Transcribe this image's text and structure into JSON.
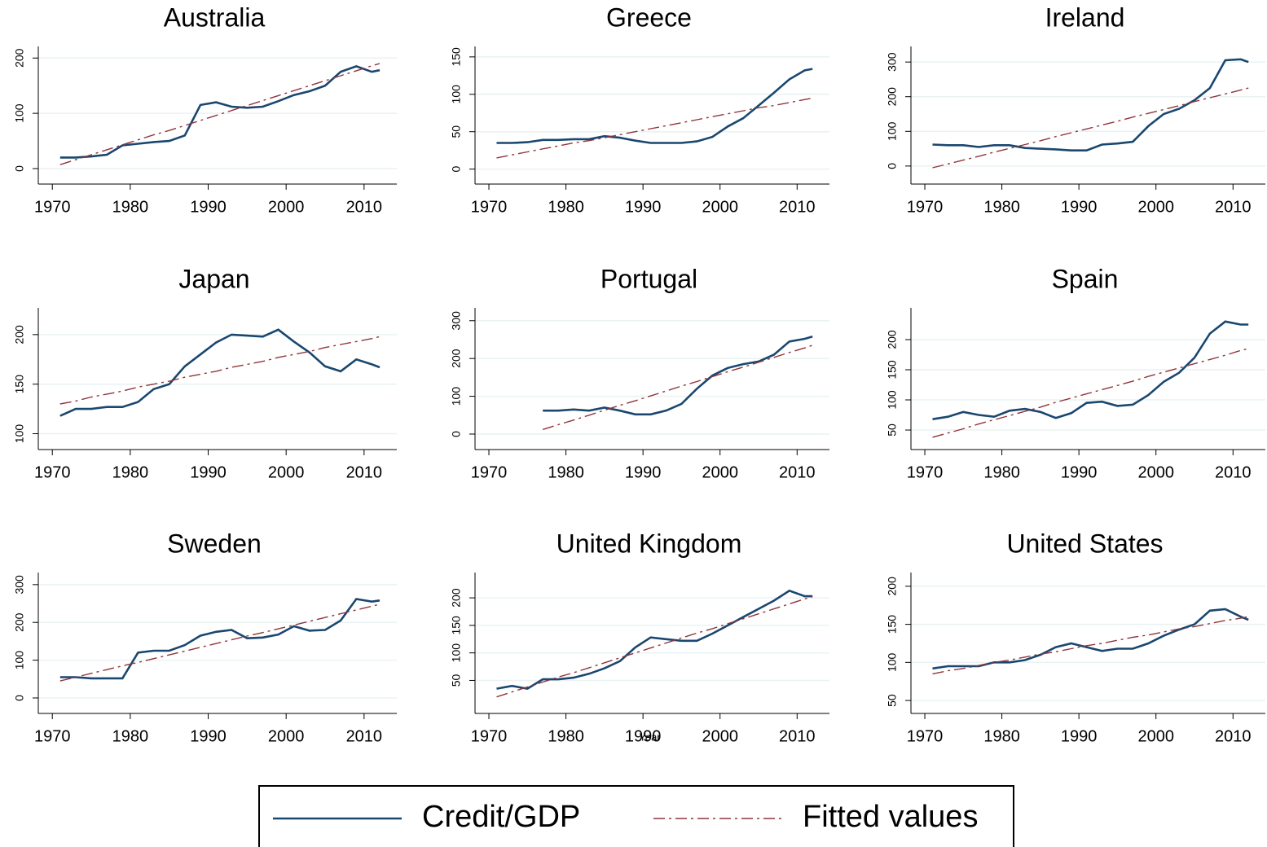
{
  "chart_data": [
    {
      "type": "line",
      "title": "Australia",
      "x": [
        1971,
        1973,
        1975,
        1977,
        1979,
        1981,
        1983,
        1985,
        1987,
        1989,
        1991,
        1993,
        1995,
        1997,
        1999,
        2001,
        2003,
        2005,
        2007,
        2009,
        2011,
        2012
      ],
      "series": [
        {
          "name": "Credit/GDP",
          "color": "#1a476f",
          "linestyle": "solid",
          "values": [
            20,
            20,
            22,
            25,
            42,
            45,
            48,
            50,
            60,
            115,
            120,
            112,
            110,
            112,
            122,
            133,
            140,
            150,
            175,
            185,
            175,
            178
          ]
        },
        {
          "name": "Fitted values",
          "color": "#90353b",
          "linestyle": "dashdot",
          "values": [
            7,
            16,
            25,
            34,
            43,
            52,
            61,
            69,
            78,
            87,
            96,
            105,
            114,
            123,
            132,
            141,
            150,
            159,
            168,
            177,
            186,
            190
          ]
        }
      ],
      "xlim": [
        1968.2,
        2014.2
      ],
      "xticks": [
        1970,
        1980,
        1990,
        2000,
        2010
      ],
      "ylim": [
        -28,
        221
      ],
      "yticks": [
        0,
        100,
        200
      ],
      "grid": true
    },
    {
      "type": "line",
      "title": "Greece",
      "x": [
        1971,
        1973,
        1975,
        1977,
        1979,
        1981,
        1983,
        1985,
        1987,
        1989,
        1991,
        1993,
        1995,
        1997,
        1999,
        2001,
        2003,
        2005,
        2007,
        2009,
        2011,
        2012
      ],
      "series": [
        {
          "name": "Credit/GDP",
          "color": "#1a476f",
          "linestyle": "solid",
          "values": [
            35,
            35,
            36,
            39,
            39,
            40,
            40,
            44,
            42,
            38,
            35,
            35,
            35,
            37,
            43,
            57,
            68,
            85,
            102,
            120,
            132,
            134
          ]
        },
        {
          "name": "Fitted values",
          "color": "#90353b",
          "linestyle": "dashdot",
          "values": [
            15,
            19,
            23,
            27,
            31,
            35,
            38,
            42,
            46,
            50,
            54,
            58,
            62,
            66,
            70,
            74,
            78,
            82,
            85,
            89,
            93,
            95
          ]
        }
      ],
      "xlim": [
        1968.2,
        2014.2
      ],
      "xticks": [
        1970,
        1980,
        1990,
        2000,
        2010
      ],
      "ylim": [
        -20,
        164
      ],
      "yticks": [
        0,
        50,
        100,
        150
      ],
      "grid": true
    },
    {
      "type": "line",
      "title": "Ireland",
      "x": [
        1971,
        1973,
        1975,
        1977,
        1979,
        1981,
        1983,
        1985,
        1987,
        1989,
        1991,
        1993,
        1995,
        1997,
        1999,
        2001,
        2003,
        2005,
        2007,
        2009,
        2011,
        2012
      ],
      "series": [
        {
          "name": "Credit/GDP",
          "color": "#1a476f",
          "linestyle": "solid",
          "values": [
            62,
            60,
            60,
            55,
            60,
            60,
            52,
            50,
            48,
            45,
            45,
            62,
            65,
            70,
            115,
            150,
            165,
            190,
            225,
            305,
            308,
            300
          ]
        },
        {
          "name": "Fitted values",
          "color": "#90353b",
          "linestyle": "dashdot",
          "values": [
            -5,
            6,
            17,
            28,
            40,
            51,
            62,
            73,
            85,
            96,
            107,
            118,
            129,
            141,
            152,
            163,
            174,
            186,
            197,
            208,
            219,
            225
          ]
        }
      ],
      "xlim": [
        1968.2,
        2014.2
      ],
      "xticks": [
        1970,
        1980,
        1990,
        2000,
        2010
      ],
      "ylim": [
        -52,
        345
      ],
      "yticks": [
        0,
        100,
        200,
        300
      ],
      "grid": true
    },
    {
      "type": "line",
      "title": "Japan",
      "x": [
        1971,
        1973,
        1975,
        1977,
        1979,
        1981,
        1983,
        1985,
        1987,
        1989,
        1991,
        1993,
        1995,
        1997,
        1999,
        2001,
        2003,
        2005,
        2007,
        2009,
        2011,
        2012
      ],
      "series": [
        {
          "name": "Credit/GDP",
          "color": "#1a476f",
          "linestyle": "solid",
          "values": [
            118,
            125,
            125,
            127,
            127,
            132,
            145,
            150,
            168,
            180,
            192,
            200,
            199,
            198,
            205,
            193,
            182,
            168,
            163,
            175,
            170,
            167
          ]
        },
        {
          "name": "Fitted values",
          "color": "#90353b",
          "linestyle": "dashdot",
          "values": [
            130,
            133,
            137,
            140,
            143,
            147,
            150,
            153,
            157,
            160,
            163,
            167,
            170,
            173,
            177,
            180,
            183,
            187,
            190,
            193,
            196,
            198
          ]
        }
      ],
      "xlim": [
        1968.2,
        2014.2
      ],
      "xticks": [
        1970,
        1980,
        1990,
        2000,
        2010
      ],
      "ylim": [
        84,
        227
      ],
      "yticks": [
        100,
        150,
        200
      ],
      "grid": true
    },
    {
      "type": "line",
      "title": "Portugal",
      "x": [
        1971,
        1973,
        1975,
        1977,
        1979,
        1981,
        1983,
        1985,
        1987,
        1989,
        1991,
        1993,
        1995,
        1997,
        1999,
        2001,
        2003,
        2005,
        2007,
        2009,
        2011,
        2012
      ],
      "series": [
        {
          "name": "Credit/GDP",
          "color": "#1a476f",
          "linestyle": "solid",
          "values": [
            null,
            null,
            null,
            62,
            62,
            65,
            62,
            70,
            62,
            52,
            52,
            62,
            80,
            120,
            155,
            175,
            185,
            192,
            210,
            245,
            252,
            258
          ]
        },
        {
          "name": "Fitted values",
          "color": "#90353b",
          "linestyle": "dashdot",
          "values": [
            null,
            null,
            null,
            12,
            25,
            37,
            50,
            63,
            76,
            88,
            101,
            114,
            127,
            139,
            152,
            165,
            177,
            190,
            203,
            216,
            228,
            235
          ]
        }
      ],
      "xlim": [
        1968.2,
        2014.2
      ],
      "xticks": [
        1970,
        1980,
        1990,
        2000,
        2010
      ],
      "ylim": [
        -41,
        334
      ],
      "yticks": [
        0,
        100,
        200,
        300
      ],
      "grid": true
    },
    {
      "type": "line",
      "title": "Spain",
      "x": [
        1971,
        1973,
        1975,
        1977,
        1979,
        1981,
        1983,
        1985,
        1987,
        1989,
        1991,
        1993,
        1995,
        1997,
        1999,
        2001,
        2003,
        2005,
        2007,
        2009,
        2011,
        2012
      ],
      "series": [
        {
          "name": "Credit/GDP",
          "color": "#1a476f",
          "linestyle": "solid",
          "values": [
            68,
            72,
            80,
            75,
            72,
            82,
            85,
            80,
            70,
            78,
            95,
            97,
            90,
            92,
            108,
            130,
            145,
            170,
            210,
            230,
            225,
            225
          ]
        },
        {
          "name": "Fitted values",
          "color": "#90353b",
          "linestyle": "dashdot",
          "values": [
            38,
            45,
            52,
            60,
            67,
            74,
            81,
            88,
            96,
            103,
            110,
            117,
            124,
            131,
            139,
            146,
            153,
            160,
            167,
            174,
            182,
            185
          ]
        }
      ],
      "xlim": [
        1968.2,
        2014.2
      ],
      "xticks": [
        1970,
        1980,
        1990,
        2000,
        2010
      ],
      "ylim": [
        17.6,
        252.7
      ],
      "yticks": [
        50,
        100,
        150,
        200
      ],
      "grid": true
    },
    {
      "type": "line",
      "title": "Sweden",
      "x": [
        1971,
        1973,
        1975,
        1977,
        1979,
        1981,
        1983,
        1985,
        1987,
        1989,
        1991,
        1993,
        1995,
        1997,
        1999,
        2001,
        2003,
        2005,
        2007,
        2009,
        2011,
        2012
      ],
      "series": [
        {
          "name": "Credit/GDP",
          "color": "#1a476f",
          "linestyle": "solid",
          "values": [
            55,
            55,
            52,
            52,
            52,
            120,
            125,
            125,
            140,
            165,
            175,
            180,
            158,
            160,
            168,
            190,
            178,
            180,
            205,
            262,
            255,
            258
          ]
        },
        {
          "name": "Fitted values",
          "color": "#90353b",
          "linestyle": "dashdot",
          "values": [
            45,
            55,
            65,
            75,
            85,
            94,
            104,
            114,
            124,
            134,
            144,
            154,
            164,
            173,
            183,
            193,
            203,
            213,
            223,
            233,
            243,
            248
          ]
        }
      ],
      "xlim": [
        1968.2,
        2014.2
      ],
      "xticks": [
        1970,
        1980,
        1990,
        2000,
        2010
      ],
      "ylim": [
        -41,
        332
      ],
      "yticks": [
        0,
        100,
        200,
        300
      ],
      "grid": true
    },
    {
      "type": "line",
      "title": "United Kingdom",
      "xlabel": "Year",
      "x": [
        1971,
        1973,
        1975,
        1977,
        1979,
        1981,
        1983,
        1985,
        1987,
        1989,
        1991,
        1993,
        1995,
        1997,
        1999,
        2001,
        2003,
        2005,
        2007,
        2009,
        2011,
        2012
      ],
      "series": [
        {
          "name": "Credit/GDP",
          "color": "#1a476f",
          "linestyle": "solid",
          "values": [
            35,
            40,
            35,
            52,
            52,
            55,
            62,
            72,
            85,
            110,
            128,
            125,
            122,
            122,
            135,
            150,
            165,
            180,
            195,
            213,
            203,
            203
          ]
        },
        {
          "name": "Fitted values",
          "color": "#90353b",
          "linestyle": "dashdot",
          "values": [
            20,
            29,
            38,
            47,
            56,
            64,
            73,
            82,
            91,
            100,
            109,
            118,
            127,
            136,
            144,
            153,
            162,
            171,
            180,
            189,
            198,
            202
          ]
        }
      ],
      "xlim": [
        1968.2,
        2014.2
      ],
      "xticks": [
        1970,
        1980,
        1990,
        2000,
        2010
      ],
      "ylim": [
        -10,
        246
      ],
      "yticks": [
        50,
        100,
        150,
        200
      ],
      "grid": true
    },
    {
      "type": "line",
      "title": "United States",
      "x": [
        1971,
        1973,
        1975,
        1977,
        1979,
        1981,
        1983,
        1985,
        1987,
        1989,
        1991,
        1993,
        1995,
        1997,
        1999,
        2001,
        2003,
        2005,
        2007,
        2009,
        2011,
        2012
      ],
      "series": [
        {
          "name": "Credit/GDP",
          "color": "#1a476f",
          "linestyle": "solid",
          "values": [
            92,
            95,
            95,
            95,
            100,
            100,
            103,
            110,
            120,
            125,
            120,
            115,
            118,
            118,
            125,
            135,
            143,
            150,
            168,
            170,
            160,
            156
          ]
        },
        {
          "name": "Fitted values",
          "color": "#90353b",
          "linestyle": "dashdot",
          "values": [
            85,
            89,
            92,
            96,
            100,
            103,
            107,
            111,
            114,
            118,
            122,
            125,
            129,
            133,
            136,
            140,
            144,
            147,
            151,
            155,
            158,
            160
          ]
        }
      ],
      "xlim": [
        1968.2,
        2014.2
      ],
      "xticks": [
        1970,
        1980,
        1990,
        2000,
        2010
      ],
      "ylim": [
        33,
        218
      ],
      "yticks": [
        50,
        100,
        150,
        200
      ],
      "grid": true
    }
  ]
}
